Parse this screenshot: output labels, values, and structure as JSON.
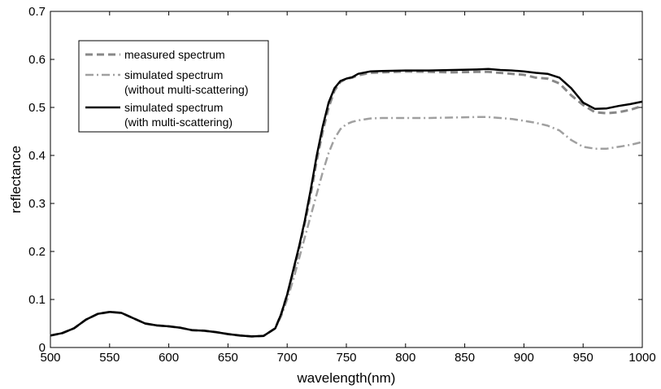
{
  "chart_data": {
    "type": "line",
    "title": "",
    "xlabel": "wavelength(nm)",
    "ylabel": "reflectance",
    "xlim": [
      500,
      1000
    ],
    "ylim": [
      0,
      0.7
    ],
    "grid": false,
    "legend_position": "top-left",
    "x_ticks": [
      "500",
      "550",
      "600",
      "650",
      "700",
      "750",
      "800",
      "850",
      "900",
      "950",
      "1000"
    ],
    "y_ticks": [
      "0",
      "0.1",
      "0.2",
      "0.3",
      "0.4",
      "0.5",
      "0.6",
      "0.7"
    ],
    "x": [
      500,
      510,
      520,
      530,
      540,
      550,
      560,
      570,
      580,
      590,
      600,
      610,
      620,
      630,
      640,
      650,
      660,
      670,
      680,
      690,
      695,
      700,
      705,
      710,
      715,
      720,
      725,
      730,
      735,
      740,
      745,
      750,
      755,
      760,
      770,
      780,
      800,
      820,
      840,
      860,
      870,
      880,
      890,
      900,
      910,
      920,
      930,
      940,
      950,
      960,
      970,
      980,
      990,
      1000
    ],
    "series": [
      {
        "name": "measured spectrum",
        "color": "#888888",
        "style": "dashed",
        "values": [
          0.025,
          0.03,
          0.04,
          0.058,
          0.07,
          0.074,
          0.072,
          0.061,
          0.05,
          0.046,
          0.044,
          0.041,
          0.036,
          0.035,
          0.032,
          0.028,
          0.025,
          0.023,
          0.024,
          0.04,
          0.07,
          0.11,
          0.155,
          0.205,
          0.26,
          0.32,
          0.39,
          0.45,
          0.5,
          0.535,
          0.553,
          0.56,
          0.562,
          0.567,
          0.572,
          0.573,
          0.575,
          0.574,
          0.573,
          0.574,
          0.574,
          0.572,
          0.57,
          0.568,
          0.562,
          0.56,
          0.55,
          0.525,
          0.505,
          0.49,
          0.488,
          0.49,
          0.495,
          0.503
        ]
      },
      {
        "name": "simulated spectrum (without multi-scattering)",
        "color": "#a0a0a0",
        "style": "dashdot",
        "values": [
          0.025,
          0.03,
          0.04,
          0.058,
          0.07,
          0.074,
          0.072,
          0.061,
          0.05,
          0.046,
          0.044,
          0.041,
          0.036,
          0.035,
          0.032,
          0.028,
          0.025,
          0.023,
          0.024,
          0.04,
          0.065,
          0.1,
          0.14,
          0.185,
          0.23,
          0.275,
          0.32,
          0.365,
          0.405,
          0.435,
          0.455,
          0.465,
          0.47,
          0.473,
          0.477,
          0.478,
          0.478,
          0.478,
          0.479,
          0.48,
          0.48,
          0.478,
          0.476,
          0.472,
          0.468,
          0.462,
          0.452,
          0.432,
          0.418,
          0.414,
          0.414,
          0.418,
          0.422,
          0.428
        ]
      },
      {
        "name": "simulated spectrum (with multi-scattering)",
        "color": "#000000",
        "style": "solid",
        "values": [
          0.025,
          0.03,
          0.04,
          0.058,
          0.07,
          0.074,
          0.072,
          0.061,
          0.05,
          0.046,
          0.044,
          0.041,
          0.036,
          0.035,
          0.032,
          0.028,
          0.025,
          0.023,
          0.024,
          0.04,
          0.07,
          0.11,
          0.16,
          0.21,
          0.265,
          0.33,
          0.4,
          0.46,
          0.51,
          0.54,
          0.555,
          0.56,
          0.563,
          0.57,
          0.575,
          0.576,
          0.577,
          0.577,
          0.578,
          0.579,
          0.58,
          0.578,
          0.577,
          0.575,
          0.572,
          0.57,
          0.562,
          0.54,
          0.51,
          0.497,
          0.498,
          0.503,
          0.507,
          0.512
        ]
      }
    ],
    "legend": {
      "entries": [
        {
          "lines": [
            "measured spectrum"
          ]
        },
        {
          "lines": [
            "simulated spectrum",
            "(without multi-scattering)"
          ]
        },
        {
          "lines": [
            "simulated spectrum",
            "(with multi-scattering)"
          ]
        }
      ]
    }
  }
}
